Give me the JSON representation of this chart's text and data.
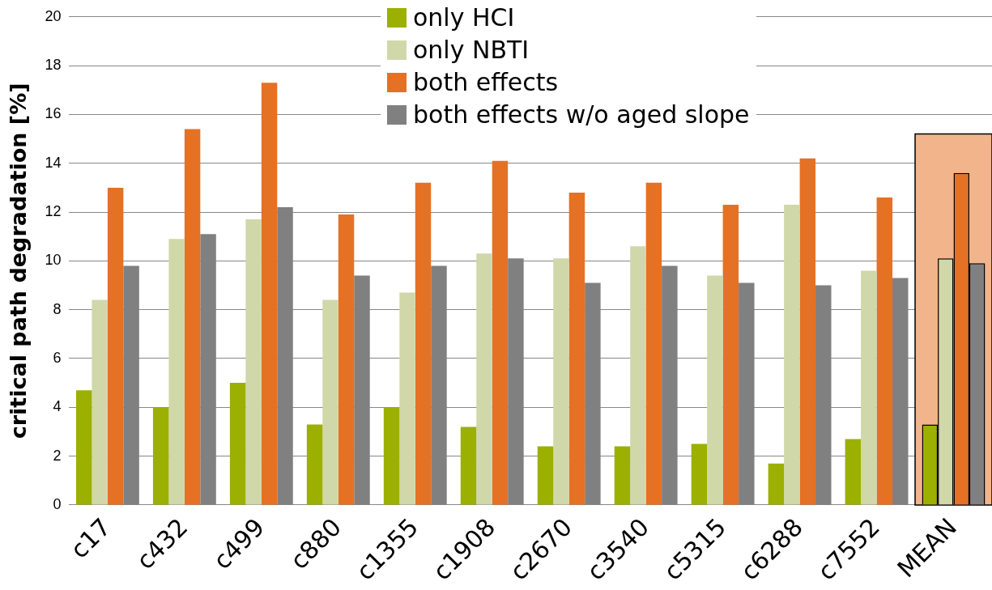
{
  "chart_data": {
    "type": "bar",
    "ylabel": "critical path degradation [%]",
    "categories": [
      "c17",
      "c432",
      "c499",
      "c880",
      "c1355",
      "c1908",
      "c2670",
      "c3540",
      "c5315",
      "c6288",
      "c7552",
      "MEAN"
    ],
    "series": [
      {
        "name": "only HCI",
        "color": "#9bb000",
        "values": [
          4.7,
          4.0,
          5.0,
          3.3,
          4.0,
          3.2,
          2.4,
          2.4,
          2.5,
          1.7,
          2.7,
          3.3
        ]
      },
      {
        "name": "only NBTI",
        "color": "#d0d8aa",
        "values": [
          8.4,
          10.9,
          11.7,
          8.4,
          8.7,
          10.3,
          10.1,
          10.6,
          9.4,
          12.3,
          9.6,
          10.1
        ]
      },
      {
        "name": "both effects",
        "color": "#e57125",
        "values": [
          13.0,
          15.4,
          17.3,
          11.9,
          13.2,
          14.1,
          12.8,
          13.2,
          12.3,
          14.2,
          12.6,
          13.6
        ]
      },
      {
        "name": "both effects w/o aged slope",
        "color": "#808080",
        "values": [
          9.8,
          11.1,
          12.2,
          9.4,
          9.8,
          10.1,
          9.1,
          9.8,
          9.1,
          9.0,
          9.3,
          9.9
        ]
      }
    ],
    "ylim": [
      0,
      20
    ],
    "yticks": [
      0,
      2,
      4,
      6,
      8,
      10,
      12,
      14,
      16,
      18,
      20
    ],
    "grid": "y",
    "legend": "top",
    "bands": [
      {
        "axis": "x",
        "from": "MEAN",
        "to": "MEAN",
        "color": "#f2b48a"
      }
    ]
  }
}
